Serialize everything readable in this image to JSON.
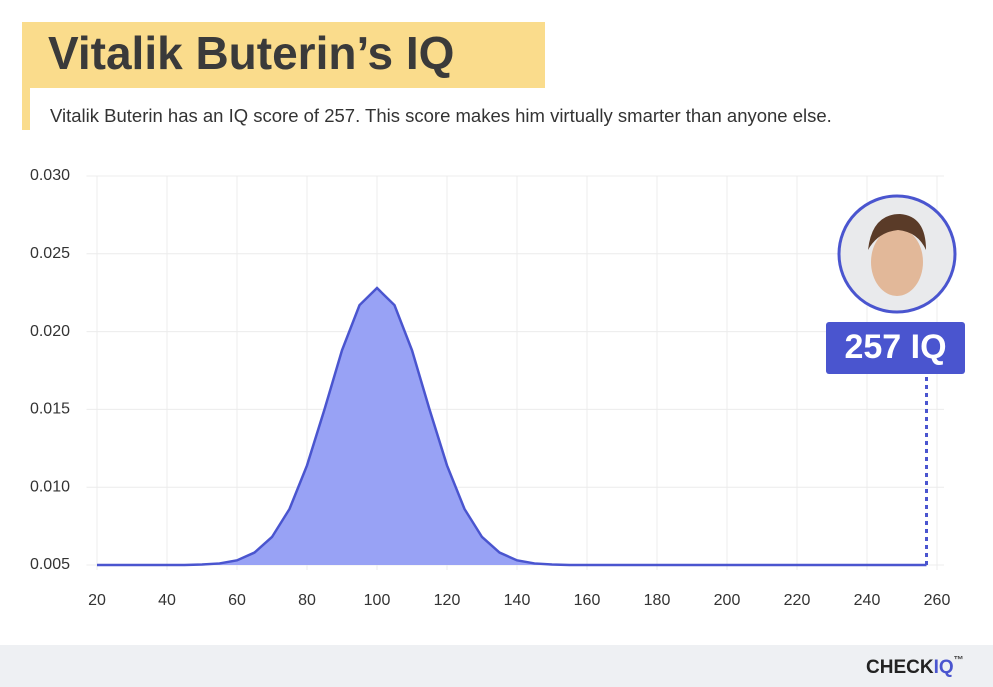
{
  "chart_data": {
    "type": "area",
    "title": "Vitalik Buterin’s IQ",
    "subtitle": "Vitalik Buterin has an IQ score of 257. This score makes him virtually smarter than anyone else.",
    "x": [
      20,
      45,
      50,
      55,
      60,
      65,
      70,
      75,
      80,
      85,
      90,
      95,
      100,
      105,
      110,
      115,
      120,
      125,
      130,
      135,
      140,
      145,
      150,
      155,
      257
    ],
    "values": [
      0.005,
      0.005,
      0.00503,
      0.0051,
      0.0053,
      0.0058,
      0.0068,
      0.0086,
      0.0114,
      0.015,
      0.0188,
      0.0217,
      0.0228,
      0.0217,
      0.0188,
      0.015,
      0.0114,
      0.0086,
      0.0068,
      0.0058,
      0.0053,
      0.0051,
      0.00503,
      0.005,
      0.005
    ],
    "color": "#98a2f5",
    "line_color": "#4a55cf",
    "xlim": [
      17,
      262
    ],
    "xticks": [
      20,
      40,
      60,
      80,
      100,
      120,
      140,
      160,
      180,
      200,
      220,
      240,
      260
    ],
    "ylim": [
      0.005,
      0.03
    ],
    "yticks": [
      0.005,
      {
        "value": 0.01,
        "label": "0.010"
      },
      0.015,
      {
        "value": 0.02,
        "label": "0.020"
      },
      0.025,
      {
        "value": 0.03,
        "label": "0.030"
      }
    ],
    "grid": true,
    "marker": {
      "x": 257,
      "label": "257 IQ",
      "color": "#4a55cf"
    },
    "brand": {
      "check": "CHECK",
      "iq": "IQ",
      "tm": "™"
    }
  }
}
